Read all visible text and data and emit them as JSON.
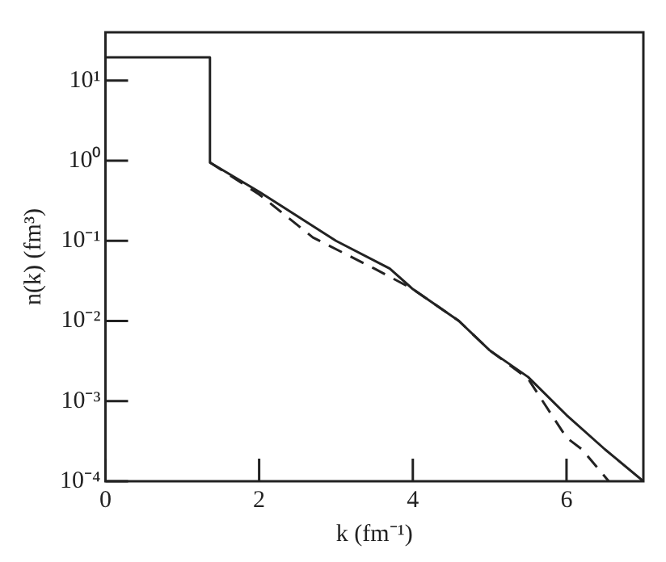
{
  "chart_data": {
    "type": "line",
    "xlabel": "k (fm⁻¹)",
    "ylabel": "n(k) (fm³)",
    "series": [
      {
        "color": "#222222",
        "line_style": "solid",
        "x": [
          0,
          1.36,
          1.36,
          2,
          3,
          3.7,
          4,
          4.6,
          5,
          5.5,
          6,
          6.5,
          7
        ],
        "values": [
          19.5,
          19.5,
          0.95,
          0.41,
          0.1,
          0.045,
          0.025,
          0.01,
          0.0043,
          0.002,
          0.00067,
          0.00025,
          0.0001
        ]
      },
      {
        "color": "#222222",
        "line_style": "dashed",
        "x": [
          1.36,
          2,
          2.7,
          3.5,
          4,
          4.6,
          5,
          5.5,
          6,
          6.2,
          6.55
        ],
        "values": [
          0.95,
          0.38,
          0.11,
          0.045,
          0.025,
          0.01,
          0.0043,
          0.0019,
          0.00035,
          0.00025,
          0.0001
        ]
      }
    ],
    "xlim": [
      0,
      7
    ],
    "xticks": [
      0,
      2,
      4,
      6
    ],
    "ylim": [
      0.0001,
      40
    ],
    "log": "y",
    "yticks": [
      {
        "value": 0.0001,
        "label": "10⁻⁴"
      },
      {
        "value": 0.001,
        "label": "10⁻³"
      },
      {
        "value": 0.01,
        "label": "10⁻²"
      },
      {
        "value": 0.1,
        "label": "10⁻¹"
      },
      {
        "value": 1,
        "label": "10⁰"
      },
      {
        "value": 10,
        "label": "10¹"
      }
    ],
    "grid": false,
    "legend": false,
    "marker": "none"
  }
}
